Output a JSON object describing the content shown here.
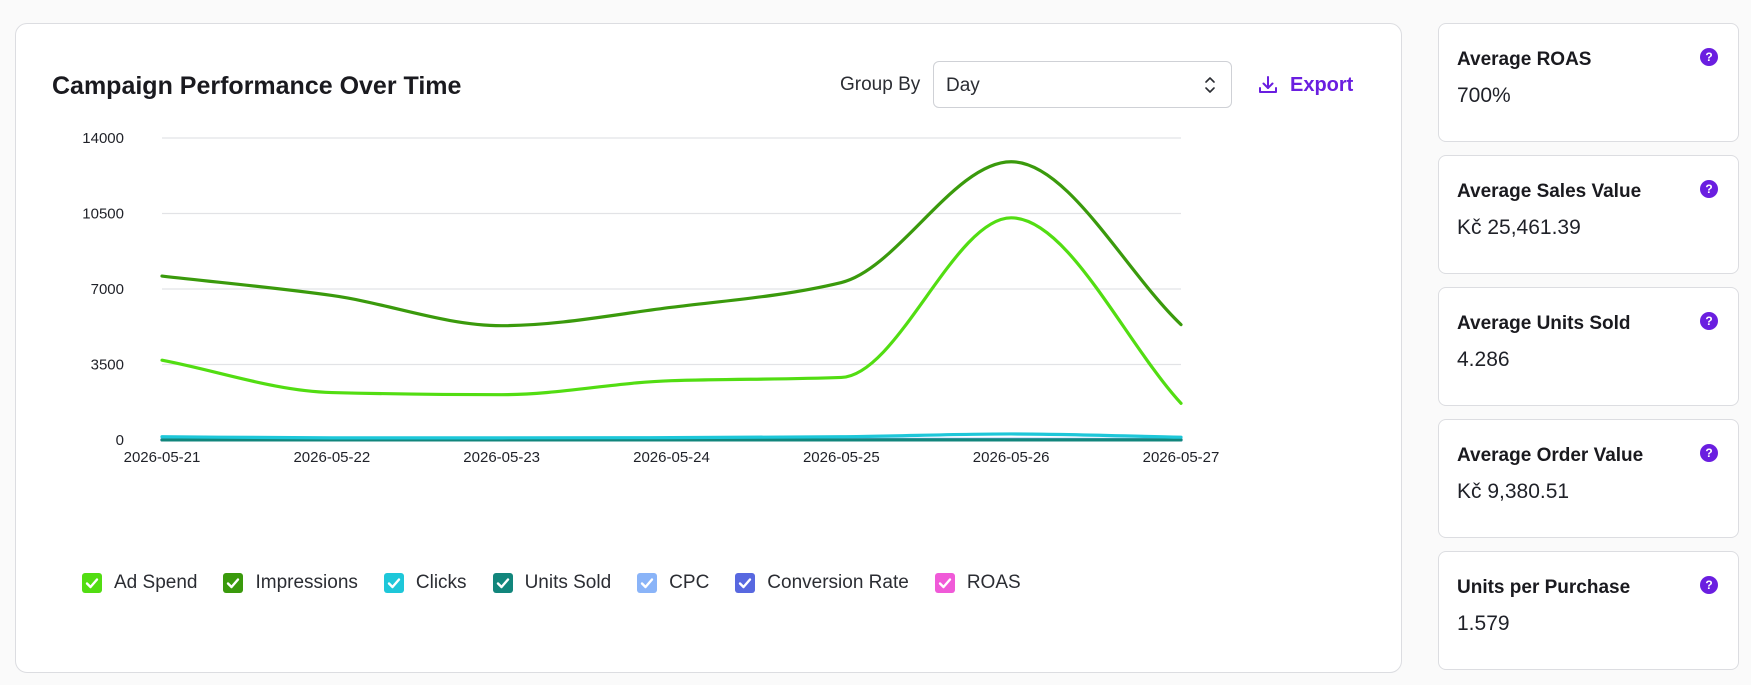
{
  "chart_card": {
    "title": "Campaign Performance Over Time",
    "group_by_label": "Group By",
    "group_by_value": "Day",
    "export_label": "Export"
  },
  "chart_data": {
    "type": "line",
    "x": [
      "2026-05-21",
      "2026-05-22",
      "2026-05-23",
      "2026-05-24",
      "2026-05-25",
      "2026-05-26",
      "2026-05-27"
    ],
    "yticks": [
      "0",
      "3500",
      "7000",
      "10500",
      "14000"
    ],
    "ylim": [
      0,
      14000
    ],
    "grid": true,
    "legend_position": "bottom",
    "series": [
      {
        "name": "Ad Spend",
        "color": "#52dd12",
        "values": [
          3700,
          2200,
          2100,
          2750,
          2900,
          10300,
          1700
        ]
      },
      {
        "name": "Impressions",
        "color": "#3a9a0c",
        "values": [
          7600,
          6700,
          5300,
          6150,
          7300,
          12900,
          5350
        ]
      },
      {
        "name": "Clicks",
        "color": "#1ec7d9",
        "values": [
          150,
          100,
          100,
          110,
          150,
          280,
          130
        ]
      },
      {
        "name": "Units Sold",
        "color": "#12867c",
        "values": [
          4,
          4,
          3,
          4,
          4,
          6,
          5
        ]
      },
      {
        "name": "CPC",
        "color": "#8ab4f8",
        "values": [
          25,
          22,
          20,
          24,
          20,
          37,
          13
        ]
      },
      {
        "name": "Conversion Rate",
        "color": "#5868e0",
        "values": [
          3,
          4,
          3,
          4,
          3,
          2,
          4
        ]
      },
      {
        "name": "ROAS",
        "color": "#f05ad8",
        "values": [
          7,
          6,
          8,
          7,
          6,
          7,
          8
        ]
      }
    ]
  },
  "stats": [
    {
      "label": "Average ROAS",
      "value": "700%"
    },
    {
      "label": "Average Sales Value",
      "value": "Kč 25,461.39"
    },
    {
      "label": "Average Units Sold",
      "value": "4.286"
    },
    {
      "label": "Average Order Value",
      "value": "Kč 9,380.51"
    },
    {
      "label": "Units per Purchase",
      "value": "1.579"
    }
  ],
  "help_glyph": "?",
  "accent_color": "#6a1ee0"
}
